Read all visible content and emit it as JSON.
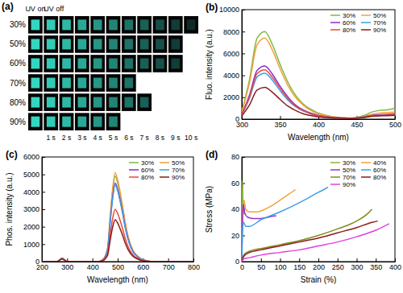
{
  "chart_data": [
    {
      "type": "image_grid",
      "title": "(a)",
      "annotations": [
        "UV on",
        "UV off"
      ],
      "categories": [
        "30%",
        "50%",
        "60%",
        "70%",
        "80%",
        "90%"
      ],
      "x": [
        "1 s",
        "2 s",
        "3 s",
        "4 s",
        "5 s",
        "6 s",
        "7 s",
        "8 s",
        "9 s",
        "10 s"
      ],
      "values": [
        10,
        9,
        9,
        6,
        7,
        5
      ],
      "color": "#35d6c0"
    },
    {
      "type": "line",
      "title": "(b)",
      "x_label": "Wavelength (nm)",
      "y_label": "Fluo. intensity (a.u.)",
      "x": [
        300,
        310,
        320,
        330,
        340,
        350,
        360,
        370,
        380,
        390,
        400,
        410,
        420,
        430,
        440,
        450,
        460,
        470,
        480,
        490,
        500
      ],
      "xlim": [
        300,
        500
      ],
      "xticks": [
        300,
        350,
        400,
        450,
        500
      ],
      "ylim": [
        0,
        10000
      ],
      "yticks": [
        0,
        2000,
        4000,
        6000,
        8000,
        10000
      ],
      "legend": "upper right",
      "series": [
        {
          "name": "30%",
          "color": "#7fb842",
          "values": [
            700,
            3600,
            7400,
            8000,
            6800,
            5000,
            3400,
            2200,
            1400,
            900,
            550,
            350,
            200,
            150,
            100,
            150,
            350,
            650,
            800,
            850,
            1000
          ]
        },
        {
          "name": "50%",
          "color": "#f4a03c",
          "values": [
            650,
            3300,
            6800,
            7400,
            6300,
            4600,
            3100,
            2000,
            1300,
            800,
            500,
            320,
            200,
            150,
            100,
            120,
            250,
            450,
            550,
            600,
            650
          ]
        },
        {
          "name": "60%",
          "color": "#8b2ad0",
          "values": [
            450,
            2200,
            4450,
            4850,
            4100,
            3000,
            2050,
            1300,
            850,
            550,
            350,
            220,
            150,
            100,
            80,
            100,
            200,
            350,
            400,
            450,
            500
          ]
        },
        {
          "name": "70%",
          "color": "#3d9ee8",
          "values": [
            400,
            1900,
            3850,
            4200,
            3550,
            2600,
            1750,
            1150,
            750,
            480,
            300,
            200,
            130,
            100,
            80,
            100,
            180,
            300,
            350,
            400,
            450
          ]
        },
        {
          "name": "80%",
          "color": "#e8483c",
          "values": [
            420,
            2050,
            4150,
            4500,
            3800,
            2800,
            1900,
            1200,
            800,
            500,
            320,
            200,
            130,
            100,
            80,
            100,
            180,
            300,
            350,
            380,
            420
          ]
        },
        {
          "name": "90%",
          "color": "#8b1a1a",
          "values": [
            300,
            1300,
            2650,
            2900,
            2450,
            1800,
            1200,
            800,
            500,
            330,
            200,
            140,
            100,
            80,
            60,
            80,
            150,
            250,
            300,
            320,
            350
          ]
        }
      ]
    },
    {
      "type": "line",
      "title": "(c)",
      "x_label": "Wavelength (nm)",
      "y_label": "Phos. intensity (a.u.)",
      "x": [
        200,
        260,
        280,
        300,
        420,
        440,
        460,
        470,
        480,
        490,
        500,
        510,
        520,
        530,
        540,
        560,
        580,
        600,
        640,
        700,
        800
      ],
      "xlim": [
        200,
        800
      ],
      "xticks": [
        200,
        300,
        400,
        500,
        600,
        700,
        800
      ],
      "ylim": [
        0,
        6000
      ],
      "yticks": [
        0,
        1000,
        2000,
        3000,
        4000,
        5000,
        6000
      ],
      "legend": "upper right",
      "series": [
        {
          "name": "30%",
          "color": "#7fb842",
          "values": [
            0,
            0,
            200,
            0,
            0,
            100,
            735,
            2450,
            4020,
            4900,
            4510,
            3820,
            3040,
            2160,
            1470,
            640,
            290,
            100,
            0,
            0,
            0
          ]
        },
        {
          "name": "50%",
          "color": "#f4a03c",
          "values": [
            0,
            0,
            200,
            0,
            0,
            100,
            765,
            2550,
            4180,
            5100,
            4690,
            3980,
            3160,
            2240,
            1530,
            660,
            310,
            100,
            0,
            0,
            0
          ]
        },
        {
          "name": "60%",
          "color": "#8b2ad0",
          "values": [
            0,
            0,
            180,
            0,
            0,
            90,
            675,
            2250,
            3690,
            4500,
            4140,
            3510,
            2790,
            1980,
            1350,
            590,
            270,
            90,
            0,
            0,
            0
          ]
        },
        {
          "name": "70%",
          "color": "#3d9ee8",
          "values": [
            0,
            0,
            180,
            0,
            0,
            90,
            660,
            2200,
            3610,
            4400,
            4050,
            3430,
            2730,
            1940,
            1320,
            570,
            260,
            90,
            0,
            0,
            0
          ]
        },
        {
          "name": "80%",
          "color": "#e8483c",
          "values": [
            0,
            0,
            150,
            0,
            0,
            60,
            450,
            1500,
            2460,
            3000,
            2760,
            2340,
            1860,
            1320,
            900,
            390,
            180,
            60,
            0,
            0,
            0
          ]
        },
        {
          "name": "90%",
          "color": "#8b1a1a",
          "values": [
            0,
            0,
            150,
            0,
            0,
            50,
            360,
            1200,
            1970,
            2400,
            2210,
            1870,
            1490,
            1060,
            720,
            310,
            140,
            50,
            0,
            0,
            0
          ]
        }
      ]
    },
    {
      "type": "line",
      "title": "(d)",
      "x_label": "Strain (%)",
      "y_label": "Stress (MPa)",
      "xlim": [
        0,
        400
      ],
      "xticks": [
        0,
        50,
        100,
        150,
        200,
        250,
        300,
        350,
        400
      ],
      "ylim": [
        0,
        80
      ],
      "yticks": [
        0,
        20,
        40,
        60,
        80
      ],
      "legend": "upper right",
      "series": [
        {
          "name": "30%",
          "color": "#8db33a",
          "x": [
            0,
            1,
            2,
            3,
            5,
            8
          ],
          "values": [
            0,
            40,
            62,
            45,
            38,
            36
          ]
        },
        {
          "name": "40%",
          "color": "#f2a33a",
          "x": [
            0,
            3,
            6,
            10,
            20,
            40,
            60,
            80,
            100,
            120,
            135,
            140
          ],
          "values": [
            0,
            40,
            47,
            40,
            38,
            38,
            40,
            43,
            47,
            51,
            54,
            55
          ]
        },
        {
          "name": "50%",
          "color": "#9b30d0",
          "x": [
            0,
            2,
            4,
            8,
            15,
            30,
            50,
            70,
            85,
            90
          ],
          "values": [
            0,
            35,
            44,
            37,
            34,
            33,
            33,
            34,
            35,
            35
          ]
        },
        {
          "name": "60%",
          "color": "#3e9fe8",
          "x": [
            0,
            2,
            5,
            10,
            20,
            50,
            100,
            150,
            200,
            220,
            225
          ],
          "values": [
            0,
            25,
            30,
            27,
            27,
            32,
            38,
            45,
            53,
            56,
            57
          ]
        },
        {
          "name": "70%",
          "color": "#7f8c1f",
          "x": [
            0,
            5,
            20,
            50,
            100,
            150,
            200,
            250,
            300,
            330,
            340
          ],
          "values": [
            0,
            5,
            8,
            10,
            13,
            16,
            20,
            25,
            31,
            37,
            40
          ]
        },
        {
          "name": "80%",
          "color": "#8b1a1a",
          "x": [
            0,
            5,
            20,
            50,
            100,
            150,
            200,
            250,
            300,
            340,
            355
          ],
          "values": [
            0,
            4,
            7,
            9,
            12,
            15,
            18,
            22,
            26,
            30,
            31
          ]
        },
        {
          "name": "90%",
          "color": "#e040e0",
          "x": [
            0,
            5,
            20,
            50,
            100,
            150,
            200,
            250,
            300,
            350,
            385
          ],
          "values": [
            0,
            2,
            3,
            5,
            7,
            9,
            12,
            15,
            19,
            24,
            29
          ]
        }
      ]
    }
  ]
}
